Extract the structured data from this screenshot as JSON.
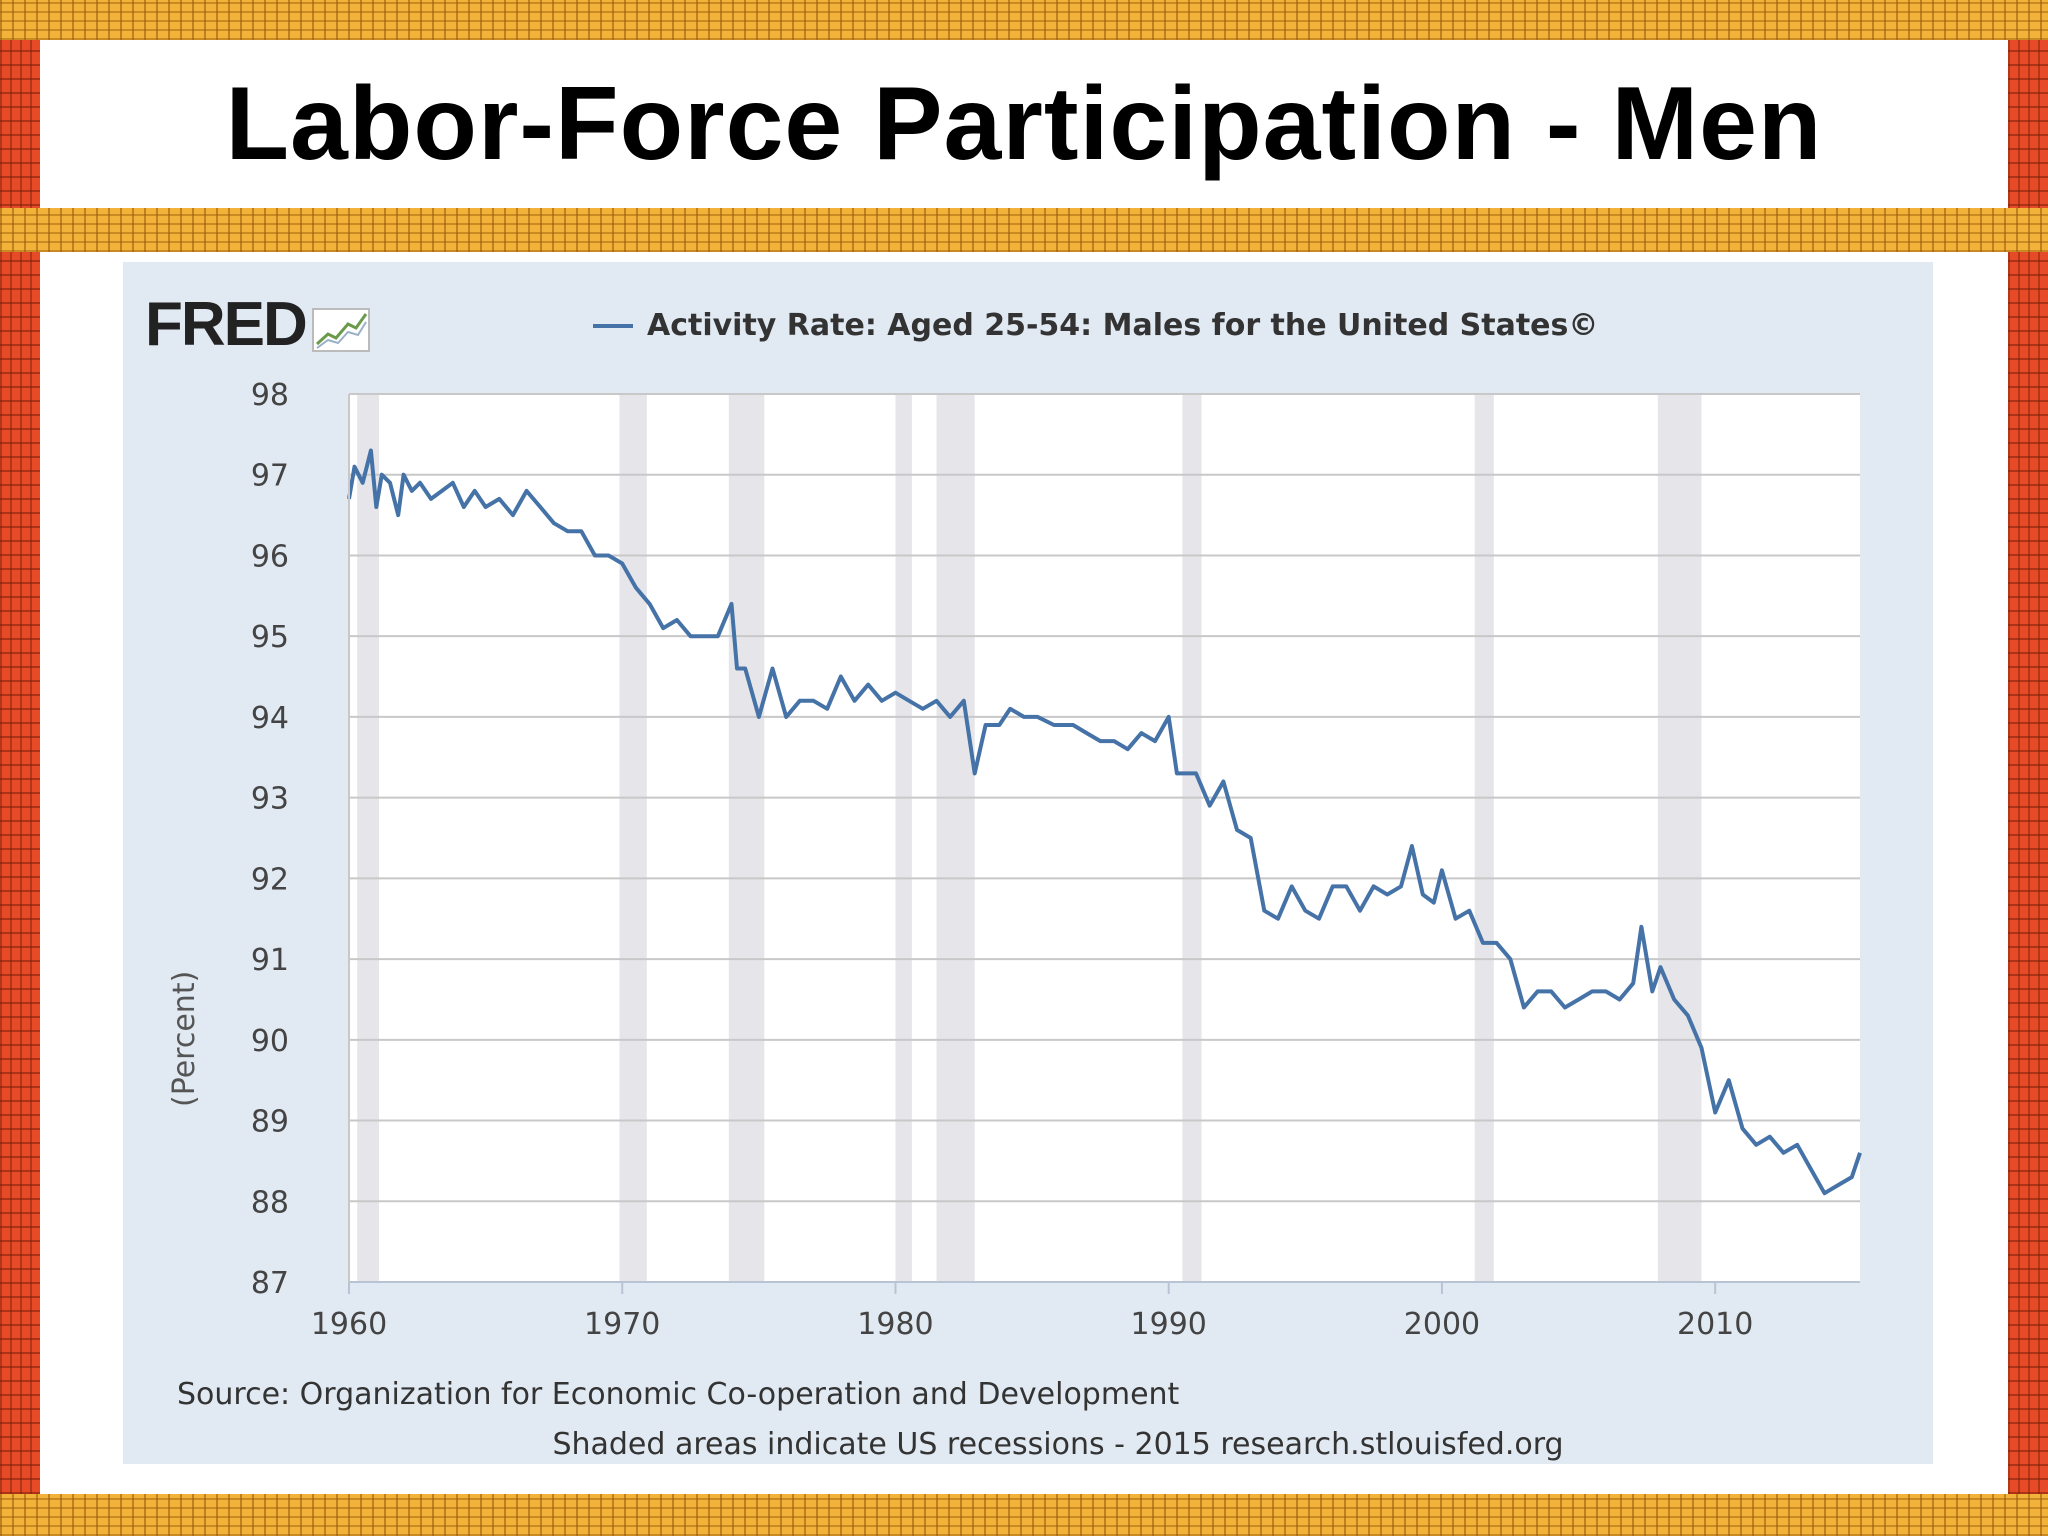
{
  "slide": {
    "title": "Labor-Force Participation - Men"
  },
  "logo": {
    "text": "FRED",
    "icon": "trend-chart-icon"
  },
  "colors": {
    "series": "#4572a7",
    "plot_bg": "#ffffff",
    "card_bg": "#e1e9f2",
    "recession": "#e6e6ea",
    "grid": "#c8c8c8"
  },
  "chart_data": {
    "type": "line",
    "title": "",
    "legend": "Activity Rate: Aged 25-54: Males for the United States©",
    "legend_position": "top",
    "xlabel": "",
    "ylabel": "(Percent)",
    "xlim": [
      1960,
      2015.3
    ],
    "ylim": [
      87,
      98
    ],
    "x_ticks": [
      1960,
      1970,
      1980,
      1990,
      2000,
      2010
    ],
    "y_ticks": [
      87,
      88,
      89,
      90,
      91,
      92,
      93,
      94,
      95,
      96,
      97,
      98
    ],
    "grid": true,
    "recessions": [
      [
        1960.3,
        1961.1
      ],
      [
        1969.9,
        1970.9
      ],
      [
        1973.9,
        1975.2
      ],
      [
        1980.0,
        1980.6
      ],
      [
        1981.5,
        1982.9
      ],
      [
        1990.5,
        1991.2
      ],
      [
        2001.2,
        2001.9
      ],
      [
        2007.9,
        2009.5
      ]
    ],
    "series": [
      {
        "name": "Activity Rate: Aged 25-54: Males for the United States©",
        "x": [
          1960.0,
          1960.2,
          1960.5,
          1960.8,
          1961.0,
          1961.2,
          1961.5,
          1961.8,
          1962.0,
          1962.3,
          1962.6,
          1963.0,
          1963.4,
          1963.8,
          1964.2,
          1964.6,
          1965.0,
          1965.5,
          1966.0,
          1966.5,
          1967.0,
          1967.5,
          1968.0,
          1968.5,
          1969.0,
          1969.5,
          1970.0,
          1970.5,
          1971.0,
          1971.5,
          1972.0,
          1972.5,
          1973.0,
          1973.5,
          1974.0,
          1974.2,
          1974.5,
          1975.0,
          1975.5,
          1976.0,
          1976.5,
          1977.0,
          1977.5,
          1978.0,
          1978.5,
          1979.0,
          1979.5,
          1980.0,
          1980.5,
          1981.0,
          1981.5,
          1982.0,
          1982.5,
          1982.9,
          1983.3,
          1983.8,
          1984.2,
          1984.7,
          1985.2,
          1985.8,
          1986.5,
          1987.0,
          1987.5,
          1988.0,
          1988.5,
          1989.0,
          1989.5,
          1990.0,
          1990.3,
          1990.7,
          1991.0,
          1991.5,
          1992.0,
          1992.5,
          1993.0,
          1993.5,
          1994.0,
          1994.5,
          1995.0,
          1995.5,
          1996.0,
          1996.5,
          1997.0,
          1997.5,
          1998.0,
          1998.5,
          1998.9,
          1999.3,
          1999.7,
          2000.0,
          2000.5,
          2001.0,
          2001.5,
          2002.0,
          2002.5,
          2003.0,
          2003.5,
          2004.0,
          2004.5,
          2005.0,
          2005.5,
          2006.0,
          2006.5,
          2007.0,
          2007.3,
          2007.7,
          2008.0,
          2008.5,
          2009.0,
          2009.5,
          2010.0,
          2010.5,
          2011.0,
          2011.5,
          2012.0,
          2012.5,
          2013.0,
          2013.5,
          2014.0,
          2014.5,
          2015.0,
          2015.3
        ],
        "y": [
          96.7,
          97.1,
          96.9,
          97.3,
          96.6,
          97.0,
          96.9,
          96.5,
          97.0,
          96.8,
          96.9,
          96.7,
          96.8,
          96.9,
          96.6,
          96.8,
          96.6,
          96.7,
          96.5,
          96.8,
          96.6,
          96.4,
          96.3,
          96.3,
          96.0,
          96.0,
          95.9,
          95.6,
          95.4,
          95.1,
          95.2,
          95.0,
          95.0,
          95.0,
          95.4,
          94.6,
          94.6,
          94.0,
          94.6,
          94.0,
          94.2,
          94.2,
          94.1,
          94.5,
          94.2,
          94.4,
          94.2,
          94.3,
          94.2,
          94.1,
          94.2,
          94.0,
          94.2,
          93.3,
          93.9,
          93.9,
          94.1,
          94.0,
          94.0,
          93.9,
          93.9,
          93.8,
          93.7,
          93.7,
          93.6,
          93.8,
          93.7,
          94.0,
          93.3,
          93.3,
          93.3,
          92.9,
          93.2,
          92.6,
          92.5,
          91.6,
          91.5,
          91.9,
          91.6,
          91.5,
          91.9,
          91.9,
          91.6,
          91.9,
          91.8,
          91.9,
          92.4,
          91.8,
          91.7,
          92.1,
          91.5,
          91.6,
          91.2,
          91.2,
          91.0,
          90.4,
          90.6,
          90.6,
          90.4,
          90.5,
          90.6,
          90.6,
          90.5,
          90.7,
          91.4,
          90.6,
          90.9,
          90.5,
          90.3,
          89.9,
          89.1,
          89.5,
          88.9,
          88.7,
          88.8,
          88.6,
          88.7,
          88.4,
          88.1,
          88.2,
          88.3,
          88.6
        ]
      }
    ]
  },
  "footer": {
    "source": "Source: Organization for Economic Co-operation and Development",
    "note": "Shaded areas indicate US recessions - 2015 research.stlouisfed.org"
  }
}
